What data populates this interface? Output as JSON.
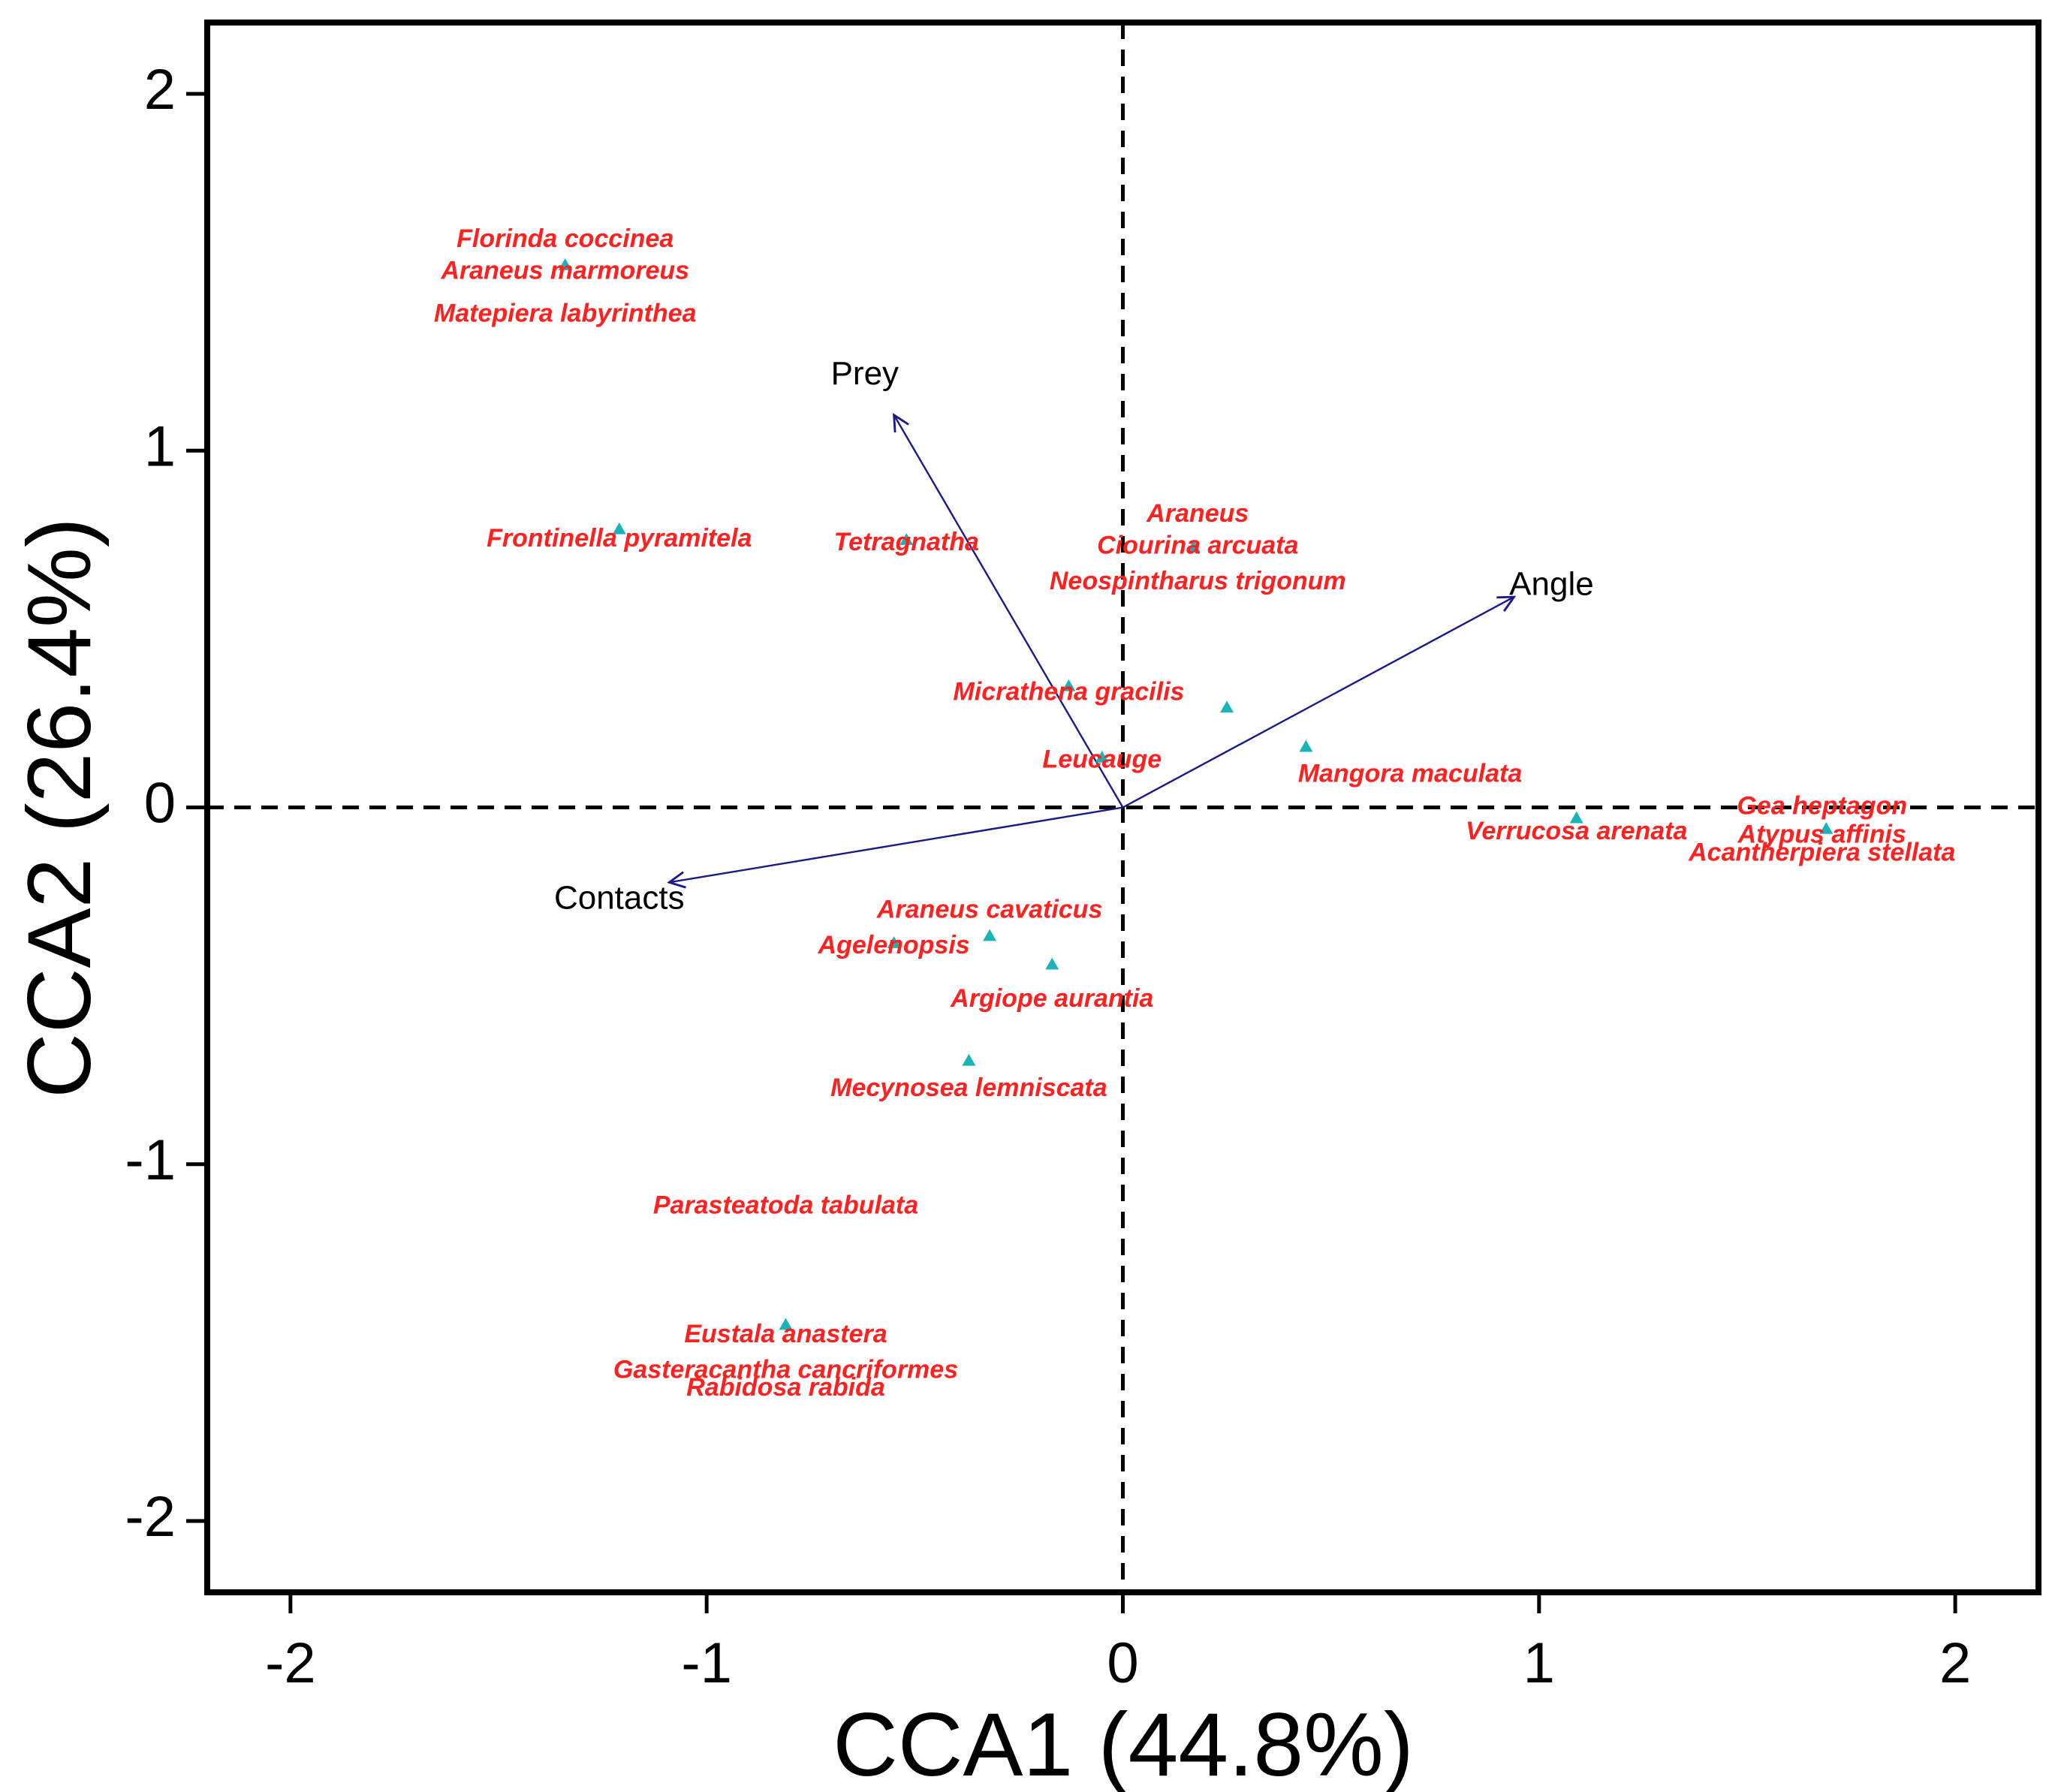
{
  "chart_data": {
    "type": "scatter",
    "subtype": "cca-biplot",
    "xlabel": "CCA1 (44.8%)",
    "ylabel": "CCA2 (26.4%)",
    "xlim": [
      -2.2,
      2.2
    ],
    "ylim": [
      -2.2,
      2.2
    ],
    "xticks": [
      -2,
      -1,
      0,
      1,
      2
    ],
    "yticks": [
      -2,
      -1,
      0,
      1,
      2
    ],
    "xtick_labels": [
      "-2",
      "-1",
      "0",
      "1",
      "2"
    ],
    "ytick_labels": [
      "-2",
      "-1",
      "0",
      "1",
      "2"
    ],
    "reference_lines": {
      "x": 0,
      "y": 0,
      "style": "dashed"
    },
    "colors": {
      "species_label": "#ff2020",
      "point": "#1ab3b8",
      "vector": "#1a1a8a",
      "axis": "#000000"
    },
    "points": [
      {
        "x": -1.34,
        "y": 1.52
      },
      {
        "x": -1.21,
        "y": 0.78
      },
      {
        "x": -0.52,
        "y": 0.75
      },
      {
        "x": 0.17,
        "y": 0.73
      },
      {
        "x": -0.13,
        "y": 0.34
      },
      {
        "x": 0.25,
        "y": 0.28
      },
      {
        "x": 0.44,
        "y": 0.17
      },
      {
        "x": -0.05,
        "y": 0.14
      },
      {
        "x": 1.09,
        "y": -0.03
      },
      {
        "x": 1.69,
        "y": -0.06
      },
      {
        "x": -0.32,
        "y": -0.36
      },
      {
        "x": -0.55,
        "y": -0.38
      },
      {
        "x": -0.17,
        "y": -0.44
      },
      {
        "x": -0.37,
        "y": -0.71
      },
      {
        "x": -0.81,
        "y": -1.45
      }
    ],
    "species_labels": [
      {
        "text": "Florinda coccinea",
        "x": -1.34,
        "y": 1.59
      },
      {
        "text": "Araneus marmoreus",
        "x": -1.34,
        "y": 1.5
      },
      {
        "text": "Matepiera labyrinthea",
        "x": -1.34,
        "y": 1.38
      },
      {
        "text": "Frontinella pyramitela",
        "x": -1.21,
        "y": 0.75
      },
      {
        "text": "Tetragnatha",
        "x": -0.52,
        "y": 0.74
      },
      {
        "text": "Araneus",
        "x": 0.18,
        "y": 0.82
      },
      {
        "text": "Ciourina arcuata",
        "x": 0.18,
        "y": 0.73
      },
      {
        "text": "Neospintharus trigonum",
        "x": 0.18,
        "y": 0.63
      },
      {
        "text": "Micrathena gracilis",
        "x": -0.13,
        "y": 0.32
      },
      {
        "text": "Leucauge",
        "x": -0.05,
        "y": 0.13
      },
      {
        "text": "Mangora maculata",
        "x": 0.69,
        "y": 0.09
      },
      {
        "text": "Verrucosa arenata",
        "x": 1.09,
        "y": -0.07
      },
      {
        "text": "Gea heptagon",
        "x": 1.68,
        "y": 0.0
      },
      {
        "text": "Atypus affinis",
        "x": 1.68,
        "y": -0.08
      },
      {
        "text": "Acantherpiera stellata",
        "x": 1.68,
        "y": -0.13
      },
      {
        "text": "Araneus cavaticus",
        "x": -0.32,
        "y": -0.29
      },
      {
        "text": "Agelenopsis",
        "x": -0.55,
        "y": -0.39
      },
      {
        "text": "Argiope aurantia",
        "x": -0.17,
        "y": -0.54
      },
      {
        "text": "Mecynosea lemniscata",
        "x": -0.37,
        "y": -0.79
      },
      {
        "text": "Parasteatoda tabulata",
        "x": -0.81,
        "y": -1.12
      },
      {
        "text": "Eustala anastera",
        "x": -0.81,
        "y": -1.48
      },
      {
        "text": "Gasteracantha cancriformes",
        "x": -0.81,
        "y": -1.58
      },
      {
        "text": "Rabidosa rabida",
        "x": -0.81,
        "y": -1.63
      }
    ],
    "vectors": [
      {
        "name": "Prey",
        "x": -0.55,
        "y": 1.1,
        "label_x": -0.62,
        "label_y": 1.21
      },
      {
        "name": "Angle",
        "x": 0.94,
        "y": 0.59,
        "label_x": 1.03,
        "label_y": 0.62
      },
      {
        "name": "Contacts",
        "x": -1.09,
        "y": -0.21,
        "label_x": -1.21,
        "label_y": -0.26
      }
    ]
  }
}
